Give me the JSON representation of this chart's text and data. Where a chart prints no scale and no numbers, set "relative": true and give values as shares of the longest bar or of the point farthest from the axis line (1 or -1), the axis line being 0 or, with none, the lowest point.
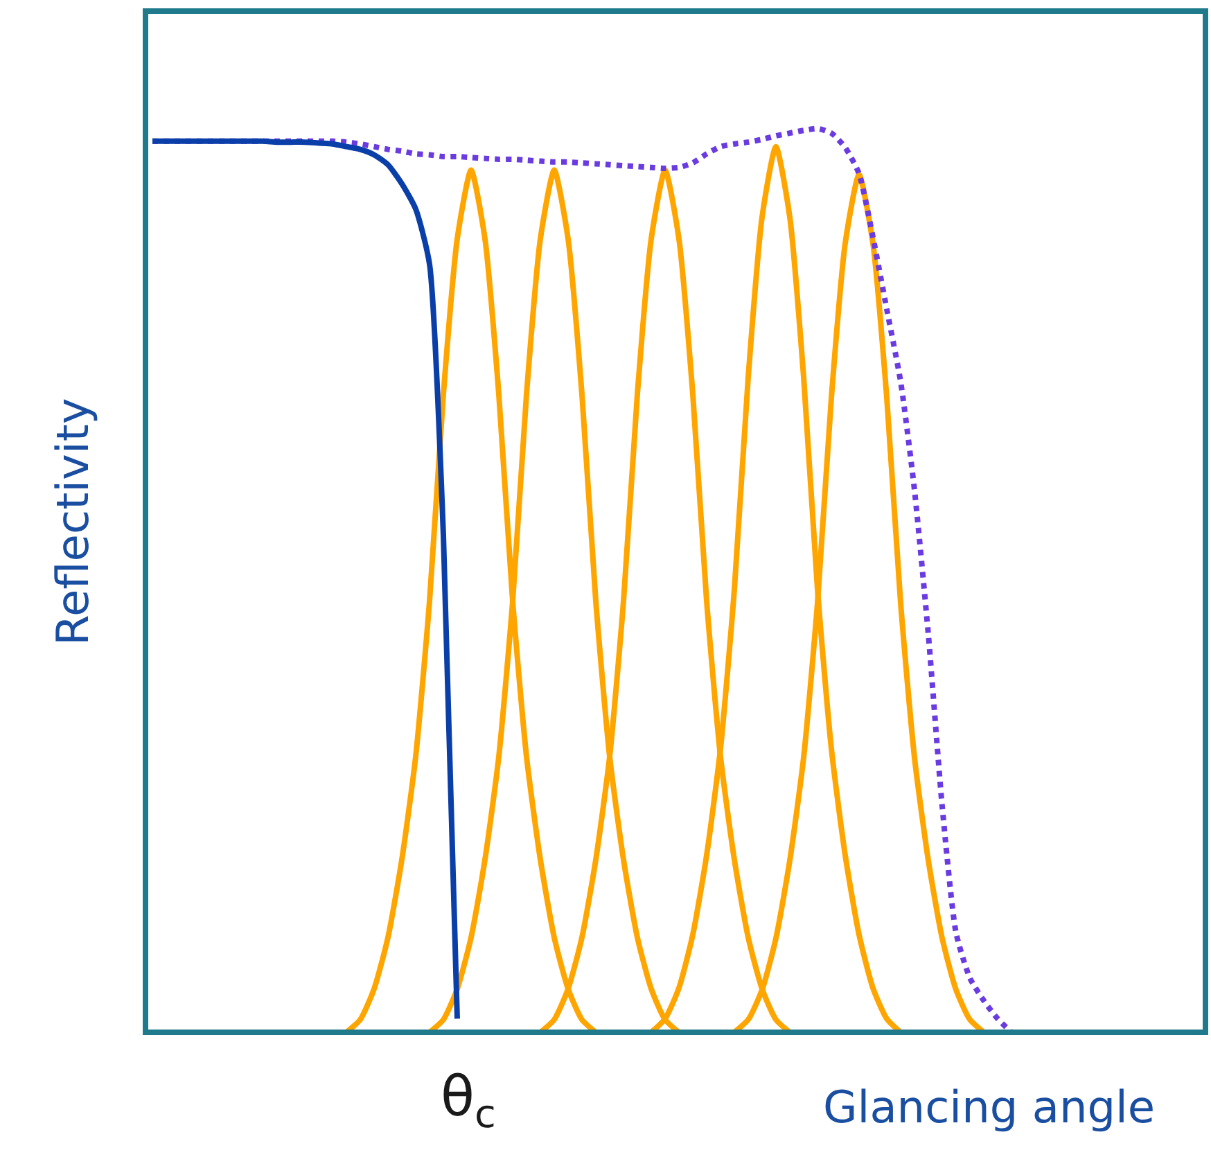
{
  "chart_data": {
    "type": "line",
    "relative": true,
    "xlabel": "Glancing angle",
    "ylabel": "Reflectivity",
    "grid": false,
    "annotations": [
      "θ$_{c}$"
    ],
    "marker": "none",
    "categories": [
      null,
      null,
      null,
      null,
      null,
      null,
      null,
      null,
      null,
      null,
      null,
      null,
      null,
      null,
      null,
      null,
      null,
      null,
      null,
      null,
      null,
      null,
      null,
      null,
      null,
      null,
      null,
      null,
      null,
      null,
      null,
      null,
      null,
      null,
      null,
      null,
      null,
      null,
      null,
      null,
      null,
      null,
      null,
      null,
      null,
      null,
      null,
      null,
      null,
      null,
      null,
      null,
      null,
      null,
      null,
      null,
      null,
      null,
      null,
      null,
      null,
      null,
      null,
      null,
      null,
      null,
      null,
      null,
      null,
      null,
      null,
      null,
      null,
      null,
      null,
      null
    ],
    "series": [
      {
        "color": "#ffa500",
        "values": [
          null,
          null,
          null,
          null,
          null,
          null,
          null,
          null,
          null,
          null,
          null,
          null,
          null,
          null,
          0,
          0.014,
          0.048,
          0.105,
          0.191,
          0.305,
          0.477,
          0.706,
          0.878,
          0.954,
          0.878,
          0.706,
          0.477,
          0.305,
          0.191,
          0.105,
          0.048,
          0.014,
          0,
          null,
          null,
          null,
          null,
          null,
          null,
          null,
          null,
          null,
          null,
          null,
          null,
          null,
          null,
          null,
          null,
          null,
          null,
          null,
          null,
          null,
          null,
          null,
          null,
          null,
          null,
          null,
          null,
          null,
          null,
          null,
          null,
          null,
          null,
          null,
          null,
          null,
          null,
          null,
          null,
          null,
          null,
          null
        ]
      },
      {
        "color": "#ffa500",
        "values": [
          null,
          null,
          null,
          null,
          null,
          null,
          null,
          null,
          null,
          null,
          null,
          null,
          null,
          null,
          null,
          null,
          null,
          null,
          null,
          null,
          0,
          0.014,
          0.048,
          0.105,
          0.191,
          0.305,
          0.477,
          0.706,
          0.878,
          0.954,
          0.878,
          0.706,
          0.477,
          0.305,
          0.191,
          0.105,
          0.048,
          0.014,
          0,
          null,
          null,
          null,
          null,
          null,
          null,
          null,
          null,
          null,
          null,
          null,
          null,
          null,
          null,
          null,
          null,
          null,
          null,
          null,
          null,
          null,
          null,
          null,
          null,
          null,
          null,
          null,
          null,
          null,
          null,
          null,
          null,
          null,
          null,
          null,
          null,
          null
        ]
      },
      {
        "color": "#ffa500",
        "values": [
          null,
          null,
          null,
          null,
          null,
          null,
          null,
          null,
          null,
          null,
          null,
          null,
          null,
          null,
          null,
          null,
          null,
          null,
          null,
          null,
          null,
          null,
          null,
          null,
          null,
          null,
          null,
          null,
          0,
          0.014,
          0.048,
          0.105,
          0.191,
          0.305,
          0.477,
          0.706,
          0.878,
          0.954,
          0.878,
          0.706,
          0.477,
          0.305,
          0.191,
          0.105,
          0.048,
          0.014,
          0,
          null,
          null,
          null,
          null,
          null,
          null,
          null,
          null,
          null,
          null,
          null,
          null,
          null,
          null,
          null,
          null,
          null,
          null,
          null,
          null,
          null,
          null,
          null,
          null,
          null,
          null,
          null,
          null,
          null
        ]
      },
      {
        "color": "#ffa500",
        "values": [
          null,
          null,
          null,
          null,
          null,
          null,
          null,
          null,
          null,
          null,
          null,
          null,
          null,
          null,
          null,
          null,
          null,
          null,
          null,
          null,
          null,
          null,
          null,
          null,
          null,
          null,
          null,
          null,
          null,
          null,
          null,
          null,
          null,
          null,
          null,
          null,
          0,
          0.015,
          0.049,
          0.108,
          0.196,
          0.314,
          0.49,
          0.725,
          0.902,
          0.98,
          0.902,
          0.725,
          0.49,
          0.314,
          0.196,
          0.108,
          0.049,
          0.015,
          0,
          null,
          null,
          null,
          null,
          null,
          null,
          null,
          null,
          null,
          null,
          null,
          null,
          null,
          null,
          null,
          null,
          null,
          null,
          null,
          null,
          null
        ]
      },
      {
        "color": "#ffa500",
        "values": [
          null,
          null,
          null,
          null,
          null,
          null,
          null,
          null,
          null,
          null,
          null,
          null,
          null,
          null,
          null,
          null,
          null,
          null,
          null,
          null,
          null,
          null,
          null,
          null,
          null,
          null,
          null,
          null,
          null,
          null,
          null,
          null,
          null,
          null,
          null,
          null,
          null,
          null,
          null,
          null,
          null,
          null,
          0,
          0.014,
          0.047,
          0.104,
          0.19,
          0.304,
          0.475,
          0.702,
          0.873,
          0.949,
          0.873,
          0.702,
          0.475,
          0.304,
          0.19,
          0.104,
          0.047,
          0.014,
          0,
          null,
          null,
          null,
          null,
          null,
          null,
          null,
          null,
          null,
          null,
          null,
          null,
          null,
          null,
          null
        ]
      },
      {
        "color": "#6a3be0",
        "line_style": "dotted",
        "values": [
          0.986,
          0.986,
          0.986,
          0.986,
          0.986,
          0.986,
          0.986,
          0.986,
          0.986,
          0.986,
          0.986,
          0.986,
          0.986,
          0.986,
          0.985,
          0.983,
          0.98,
          0.977,
          0.975,
          0.972,
          0.971,
          0.969,
          0.969,
          0.968,
          0.967,
          0.966,
          0.966,
          0.965,
          0.964,
          0.963,
          0.963,
          0.962,
          0.961,
          0.96,
          0.959,
          0.958,
          0.957,
          0.956,
          0.957,
          0.962,
          0.972,
          0.98,
          0.983,
          0.985,
          0.988,
          0.992,
          0.995,
          0.998,
          1,
          0.995,
          0.979,
          0.95,
          0.88,
          0.8,
          0.72,
          0.6,
          0.44,
          0.25,
          0.11,
          0.06,
          0.035,
          0.015,
          0,
          null,
          null,
          null,
          null,
          null,
          null,
          null,
          null,
          null,
          null,
          null,
          null,
          null
        ]
      },
      {
        "color": "#0a3ea8",
        "values": [
          0.986,
          0.986,
          0.986,
          0.986,
          0.986,
          0.986,
          0.986,
          0.986,
          0.986,
          0.985,
          0.985,
          0.985,
          0.984,
          0.983,
          0.98,
          0.977,
          0.971,
          0.96,
          0.939,
          0.911,
          0.85,
          0.55,
          0.015,
          null,
          null,
          null,
          null,
          null,
          null,
          null,
          null,
          null,
          null,
          null,
          null,
          null,
          null,
          null,
          null,
          null,
          null,
          null,
          null,
          null,
          null,
          null,
          null,
          null,
          null,
          null,
          null,
          null,
          null,
          null,
          null,
          null,
          null,
          null,
          null,
          null,
          null,
          null,
          null,
          null,
          null,
          null,
          null,
          null,
          null,
          null,
          null,
          null,
          null,
          null,
          null,
          null
        ]
      }
    ]
  }
}
